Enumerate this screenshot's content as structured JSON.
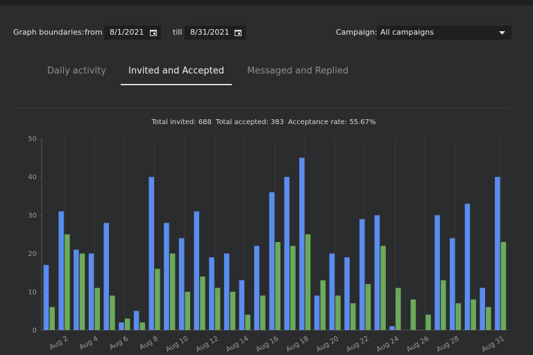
{
  "controls": {
    "boundaries_label": "Graph boundaries:",
    "from_label": "from",
    "from_date": "8/1/2021",
    "till_label": "till",
    "till_date": "8/31/2021",
    "campaign_label": "Campaign:",
    "campaign_value": "All campaigns"
  },
  "tabs": [
    "Daily activity",
    "Invited and Accepted",
    "Messaged and Replied"
  ],
  "active_tab": 1,
  "summary": [
    "Total invited: 688",
    "Total accepted: 383",
    "Acceptance rate: 55.67%"
  ],
  "chart_data": {
    "type": "bar",
    "categories": [
      null,
      "Aug 2",
      null,
      "Aug 4",
      null,
      "Aug 6",
      null,
      "Aug 8",
      null,
      "Aug 10",
      null,
      "Aug 12",
      null,
      "Aug 14",
      null,
      "Aug 16",
      null,
      "Aug 18",
      null,
      "Aug 20",
      null,
      "Aug 22",
      null,
      "Aug 24",
      null,
      "Aug 26",
      null,
      "Aug 28",
      null,
      null,
      "Aug 31"
    ],
    "series": [
      {
        "color": "#5b8def",
        "values": [
          17,
          31,
          21,
          20,
          28,
          2,
          5,
          40,
          28,
          24,
          31,
          19,
          20,
          13,
          22,
          36,
          40,
          45,
          9,
          20,
          19,
          29,
          30,
          1,
          0,
          0,
          30,
          24,
          33,
          11,
          40
        ]
      },
      {
        "color": "#6aaa5a",
        "values": [
          6,
          25,
          20,
          11,
          9,
          3,
          2,
          16,
          20,
          10,
          14,
          11,
          10,
          4,
          9,
          23,
          22,
          25,
          13,
          9,
          7,
          12,
          22,
          11,
          8,
          4,
          13,
          7,
          8,
          6,
          23
        ]
      }
    ],
    "ylim": [
      0,
      50
    ],
    "yticks": [
      0,
      10,
      20,
      30,
      40,
      50
    ],
    "grid": "x"
  }
}
